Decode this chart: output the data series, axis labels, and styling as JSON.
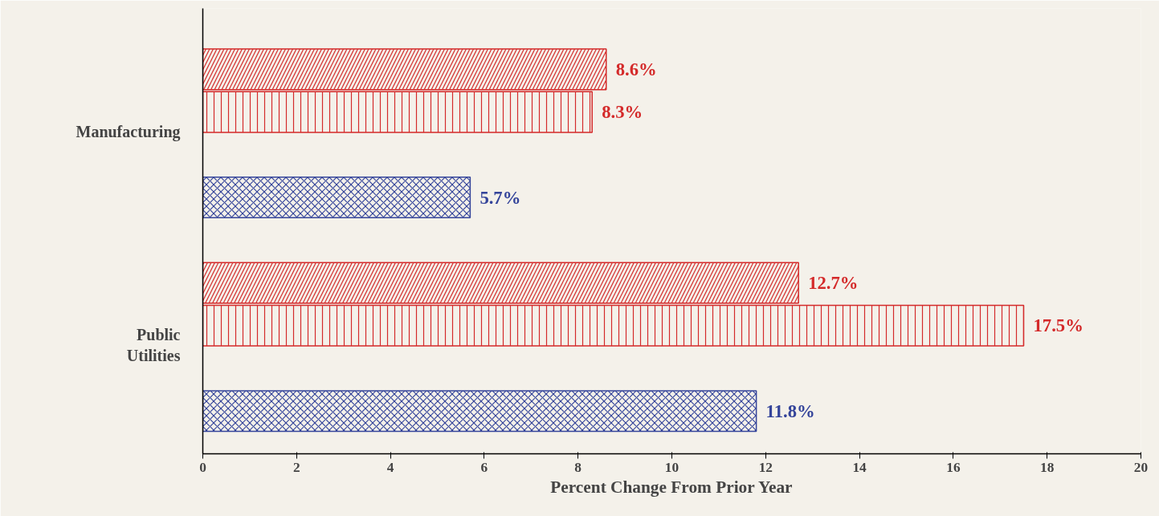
{
  "chart_data": {
    "type": "bar",
    "orientation": "horizontal",
    "categories": [
      "Manufacturing",
      "Public\nUtilities"
    ],
    "xlabel": "Percent Change From Prior Year",
    "xlim": [
      0,
      20
    ],
    "xticks": [
      0,
      2,
      4,
      6,
      8,
      10,
      12,
      14,
      16,
      18,
      20
    ],
    "grid": false,
    "series": [
      {
        "color": "#d42a2a",
        "values": [
          8.6,
          12.7
        ],
        "value_labels": [
          "8.6%",
          "12.7%"
        ]
      },
      {
        "color": "#d42a2a",
        "values": [
          8.3,
          17.5
        ],
        "value_labels": [
          "8.3%",
          "17.5%"
        ]
      },
      {
        "color": "#34449a",
        "values": [
          5.7,
          11.8
        ],
        "value_labels": [
          "5.7%",
          "11.8%"
        ]
      }
    ]
  }
}
